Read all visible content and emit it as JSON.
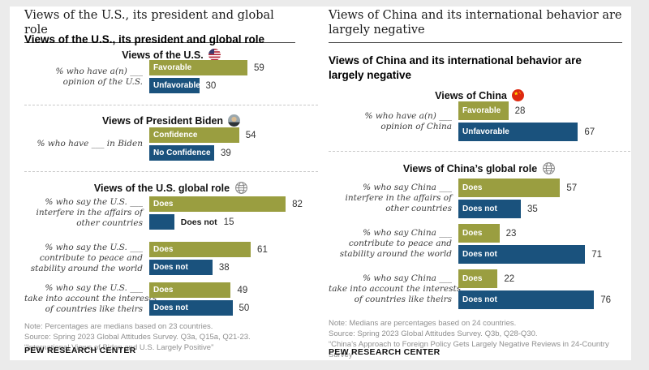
{
  "colors": {
    "olive": "#9a9e40",
    "navy": "#1a527d",
    "page_bg": "#ebebeb",
    "card_bg": "#ffffff"
  },
  "panels": [
    {
      "serif_title": "Views of the U.S., its president and global role",
      "bold_title": "Views of the U.S., its president and global role",
      "bar_scale": 2.05,
      "sections": [
        {
          "heading": "Views of the U.S.",
          "icon": "us-flag-icon",
          "rows": [
            {
              "label_lines": [
                "% who have a(n) ___",
                "opinion of the U.S."
              ],
              "bars": [
                {
                  "label": "Favorable",
                  "value": 59
                },
                {
                  "label": "Unfavorable",
                  "value": 30
                }
              ]
            }
          ]
        },
        {
          "heading": "Views of President Biden",
          "icon": "biden-avatar-icon",
          "rows": [
            {
              "label_lines": [
                "% who have ___ in Biden"
              ],
              "bars": [
                {
                  "label": "Confidence",
                  "value": 54
                },
                {
                  "label": "No Confidence",
                  "value": 39
                }
              ]
            }
          ]
        },
        {
          "heading": "Views of the U.S. global role",
          "icon": "globe-icon",
          "rows": [
            {
              "label_lines": [
                "% who say the U.S. ___",
                "interfere in the affairs of",
                "other countries"
              ],
              "bars": [
                {
                  "label": "Does",
                  "value": 82
                },
                {
                  "label": "Does not",
                  "value": 15,
                  "label_outside": true
                }
              ]
            },
            {
              "label_lines": [
                "% who say the U.S. ___",
                "contribute to peace and",
                "stability around the world"
              ],
              "bars": [
                {
                  "label": "Does",
                  "value": 61
                },
                {
                  "label": "Does not",
                  "value": 38
                }
              ]
            },
            {
              "label_lines": [
                "% who say the U.S. ___",
                "take into account the interests",
                "of countries like theirs"
              ],
              "bars": [
                {
                  "label": "Does",
                  "value": 49
                },
                {
                  "label": "Does not",
                  "value": 50
                }
              ]
            }
          ]
        }
      ],
      "notes": [
        "Note: Percentages are medians based on 23 countries.",
        "Source: Spring 2023 Global Attitudes Survey. Q3a, Q15a, Q21-23.",
        "“International Views of Biden and U.S. Largely Positive”"
      ],
      "footer": "PEW RESEARCH CENTER"
    },
    {
      "serif_title": "Views of China and its international behavior are largely negative",
      "bold_title": "Views of China and its international behavior are largely negative",
      "bar_scale": 2.2,
      "sections": [
        {
          "heading": "Views of China",
          "icon": "china-flag-icon",
          "rows": [
            {
              "label_lines": [
                "% who have a(n) ___",
                "opinion of China"
              ],
              "bars": [
                {
                  "label": "Favorable",
                  "value": 28
                },
                {
                  "label": "Unfavorable",
                  "value": 67
                }
              ]
            }
          ]
        },
        {
          "heading": "Views of China’s global role",
          "icon": "globe-icon",
          "rows": [
            {
              "label_lines": [
                "% who say China ___",
                "interfere in the affairs of",
                "other countries"
              ],
              "bars": [
                {
                  "label": "Does",
                  "value": 57
                },
                {
                  "label": "Does not",
                  "value": 35
                }
              ]
            },
            {
              "label_lines": [
                "% who say China ___",
                "contribute to peace and",
                "stability around the world"
              ],
              "bars": [
                {
                  "label": "Does",
                  "value": 23
                },
                {
                  "label": "Does not",
                  "value": 71
                }
              ]
            },
            {
              "label_lines": [
                "% who say China ___",
                "take into account the interests",
                "of countries like theirs"
              ],
              "bars": [
                {
                  "label": "Does",
                  "value": 22
                },
                {
                  "label": "Does not",
                  "value": 76
                }
              ]
            }
          ]
        }
      ],
      "notes": [
        "Note: Medians are percentages based on 24 countries.",
        "Source: Spring 2023 Global Attitudes Survey. Q3b, Q28-Q30.",
        "“China’s Approach to Foreign Policy Gets Largely Negative Reviews in 24-Country Survey”"
      ],
      "footer": "PEW RESEARCH CENTER"
    }
  ],
  "chart_data": [
    {
      "type": "bar",
      "title": "Views of the U.S., its president and global role",
      "unit": "% (medians based on 23 countries)",
      "legend_position": "labels inside bars",
      "grid": false,
      "xlim": [
        0,
        100
      ],
      "groups": [
        {
          "section": "Views of the U.S.",
          "question": "% who have a(n) ___ opinion of the U.S.",
          "bars": [
            {
              "label": "Favorable",
              "value": 59,
              "color": "#9a9e40"
            },
            {
              "label": "Unfavorable",
              "value": 30,
              "color": "#1a527d"
            }
          ]
        },
        {
          "section": "Views of President Biden",
          "question": "% who have ___ in Biden",
          "bars": [
            {
              "label": "Confidence",
              "value": 54,
              "color": "#9a9e40"
            },
            {
              "label": "No Confidence",
              "value": 39,
              "color": "#1a527d"
            }
          ]
        },
        {
          "section": "Views of the U.S. global role",
          "question": "% who say the U.S. ___ interfere in the affairs of other countries",
          "bars": [
            {
              "label": "Does",
              "value": 82,
              "color": "#9a9e40"
            },
            {
              "label": "Does not",
              "value": 15,
              "color": "#1a527d"
            }
          ]
        },
        {
          "section": "Views of the U.S. global role",
          "question": "% who say the U.S. ___ contribute to peace and stability around the world",
          "bars": [
            {
              "label": "Does",
              "value": 61,
              "color": "#9a9e40"
            },
            {
              "label": "Does not",
              "value": 38,
              "color": "#1a527d"
            }
          ]
        },
        {
          "section": "Views of the U.S. global role",
          "question": "% who say the U.S. ___ take into account the interests of countries like theirs",
          "bars": [
            {
              "label": "Does",
              "value": 49,
              "color": "#9a9e40"
            },
            {
              "label": "Does not",
              "value": 50,
              "color": "#1a527d"
            }
          ]
        }
      ]
    },
    {
      "type": "bar",
      "title": "Views of China and its international behavior are largely negative",
      "unit": "% (medians based on 24 countries)",
      "legend_position": "labels inside bars",
      "grid": false,
      "xlim": [
        0,
        100
      ],
      "groups": [
        {
          "section": "Views of China",
          "question": "% who have a(n) ___ opinion of China",
          "bars": [
            {
              "label": "Favorable",
              "value": 28,
              "color": "#9a9e40"
            },
            {
              "label": "Unfavorable",
              "value": 67,
              "color": "#1a527d"
            }
          ]
        },
        {
          "section": "Views of China’s global role",
          "question": "% who say China ___ interfere in the affairs of other countries",
          "bars": [
            {
              "label": "Does",
              "value": 57,
              "color": "#9a9e40"
            },
            {
              "label": "Does not",
              "value": 35,
              "color": "#1a527d"
            }
          ]
        },
        {
          "section": "Views of China’s global role",
          "question": "% who say China ___ contribute to peace and stability around the world",
          "bars": [
            {
              "label": "Does",
              "value": 23,
              "color": "#9a9e40"
            },
            {
              "label": "Does not",
              "value": 71,
              "color": "#1a527d"
            }
          ]
        },
        {
          "section": "Views of China’s global role",
          "question": "% who say China ___ take into account the interests of countries like theirs",
          "bars": [
            {
              "label": "Does",
              "value": 22,
              "color": "#9a9e40"
            },
            {
              "label": "Does not",
              "value": 76,
              "color": "#1a527d"
            }
          ]
        }
      ]
    }
  ]
}
